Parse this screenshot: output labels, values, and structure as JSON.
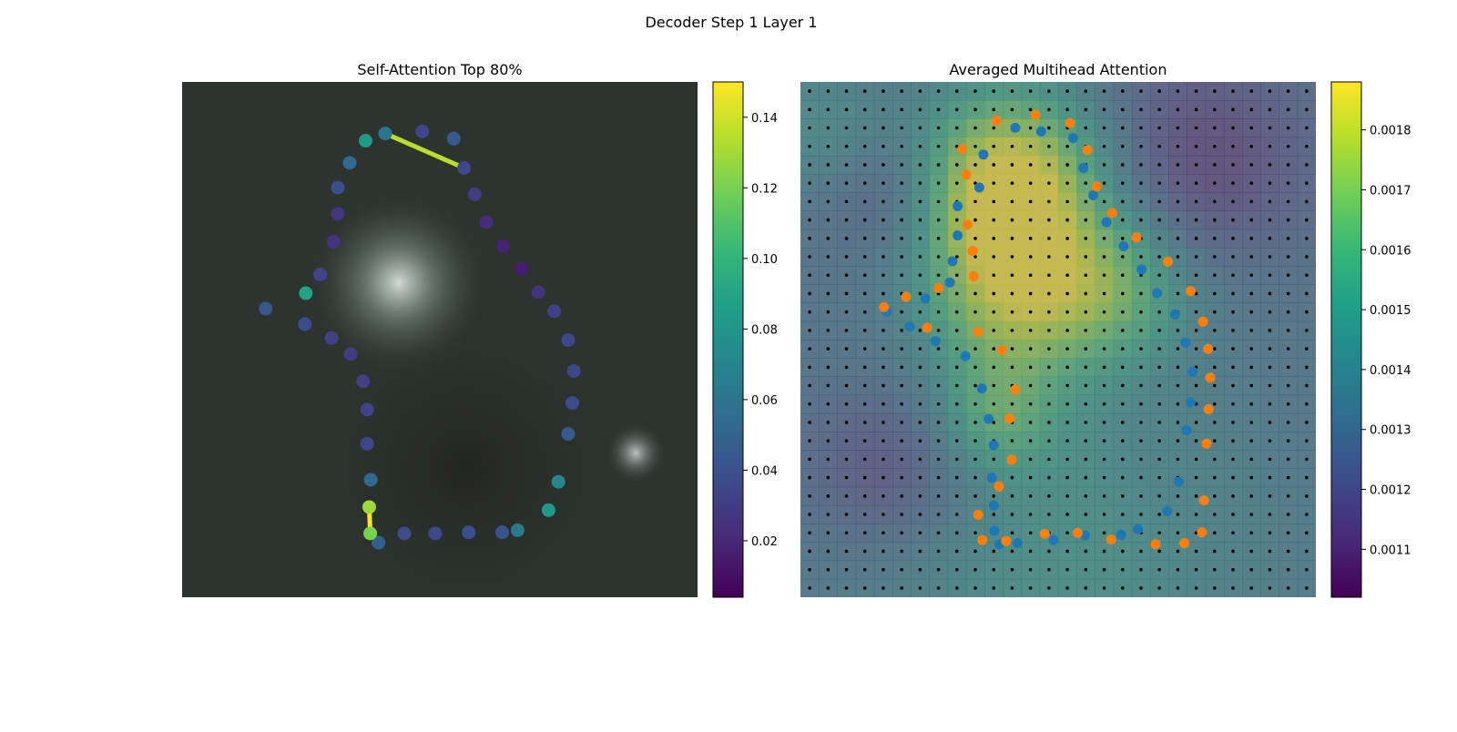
{
  "figure": {
    "title": "Decoder Step 1 Layer 1"
  },
  "colors": {
    "viridis": [
      "#440154",
      "#482878",
      "#3e4989",
      "#31688e",
      "#26828e",
      "#1f9e89",
      "#35b779",
      "#6ece58",
      "#b5de2b",
      "#fde725"
    ],
    "series_blue": "#1f77b4",
    "series_orange": "#ff7f0e",
    "grid_dot": "#000000"
  },
  "chart_data": [
    {
      "type": "scatter",
      "title": "Self-Attention Top 80%",
      "background": "grayscale photo of a chair (greenish tone)",
      "colorbar": {
        "min": 0.004,
        "max": 0.15,
        "ticks": [
          0.02,
          0.04,
          0.06,
          0.08,
          0.1,
          0.12,
          0.14
        ],
        "tick_labels": [
          "0.02",
          "0.04",
          "0.06",
          "0.08",
          "0.10",
          "0.12",
          "0.14"
        ]
      },
      "points": [
        {
          "x": 0.394,
          "y": 0.1,
          "v": 0.062
        },
        {
          "x": 0.466,
          "y": 0.096,
          "v": 0.036
        },
        {
          "x": 0.527,
          "y": 0.11,
          "v": 0.046
        },
        {
          "x": 0.547,
          "y": 0.167,
          "v": 0.036
        },
        {
          "x": 0.568,
          "y": 0.218,
          "v": 0.03
        },
        {
          "x": 0.59,
          "y": 0.272,
          "v": 0.022
        },
        {
          "x": 0.623,
          "y": 0.319,
          "v": 0.018
        },
        {
          "x": 0.659,
          "y": 0.362,
          "v": 0.016
        },
        {
          "x": 0.691,
          "y": 0.408,
          "v": 0.026
        },
        {
          "x": 0.722,
          "y": 0.445,
          "v": 0.032
        },
        {
          "x": 0.749,
          "y": 0.501,
          "v": 0.036
        },
        {
          "x": 0.76,
          "y": 0.561,
          "v": 0.036
        },
        {
          "x": 0.757,
          "y": 0.623,
          "v": 0.038
        },
        {
          "x": 0.749,
          "y": 0.683,
          "v": 0.046
        },
        {
          "x": 0.73,
          "y": 0.776,
          "v": 0.072
        },
        {
          "x": 0.711,
          "y": 0.831,
          "v": 0.082
        },
        {
          "x": 0.651,
          "y": 0.87,
          "v": 0.062
        },
        {
          "x": 0.621,
          "y": 0.874,
          "v": 0.042
        },
        {
          "x": 0.556,
          "y": 0.874,
          "v": 0.04
        },
        {
          "x": 0.491,
          "y": 0.876,
          "v": 0.036
        },
        {
          "x": 0.431,
          "y": 0.876,
          "v": 0.038
        },
        {
          "x": 0.381,
          "y": 0.894,
          "v": 0.048
        },
        {
          "x": 0.365,
          "y": 0.876,
          "v": 0.12
        },
        {
          "x": 0.363,
          "y": 0.825,
          "v": 0.128
        },
        {
          "x": 0.366,
          "y": 0.772,
          "v": 0.054
        },
        {
          "x": 0.359,
          "y": 0.702,
          "v": 0.036
        },
        {
          "x": 0.359,
          "y": 0.636,
          "v": 0.034
        },
        {
          "x": 0.351,
          "y": 0.581,
          "v": 0.032
        },
        {
          "x": 0.327,
          "y": 0.528,
          "v": 0.03
        },
        {
          "x": 0.29,
          "y": 0.497,
          "v": 0.032
        },
        {
          "x": 0.238,
          "y": 0.47,
          "v": 0.038
        },
        {
          "x": 0.162,
          "y": 0.44,
          "v": 0.044
        },
        {
          "x": 0.24,
          "y": 0.41,
          "v": 0.088
        },
        {
          "x": 0.268,
          "y": 0.374,
          "v": 0.034
        },
        {
          "x": 0.294,
          "y": 0.31,
          "v": 0.026
        },
        {
          "x": 0.302,
          "y": 0.256,
          "v": 0.026
        },
        {
          "x": 0.302,
          "y": 0.205,
          "v": 0.04
        },
        {
          "x": 0.325,
          "y": 0.157,
          "v": 0.054
        },
        {
          "x": 0.356,
          "y": 0.114,
          "v": 0.082
        }
      ],
      "edges": [
        {
          "from": 0,
          "to": 3,
          "v": 0.135
        },
        {
          "from": 22,
          "to": 23,
          "v": 0.15
        }
      ]
    },
    {
      "type": "scatter",
      "title": "Averaged Multihead Attention",
      "background": "attention heatmap (viridis) over grid of keypoints",
      "colorbar": {
        "min": 0.00102,
        "max": 0.00188,
        "ticks": [
          0.0011,
          0.0012,
          0.0013,
          0.0014,
          0.0015,
          0.0016,
          0.0017,
          0.0018
        ],
        "tick_labels": [
          "0.0011",
          "0.0012",
          "0.0013",
          "0.0014",
          "0.0015",
          "0.0016",
          "0.0017",
          "0.0018"
        ]
      },
      "grid": {
        "cols": 28,
        "rows": 28
      },
      "series": [
        {
          "color_key": "series_blue",
          "points": [
            {
              "x": 0.417,
              "y": 0.089
            },
            {
              "x": 0.467,
              "y": 0.096
            },
            {
              "x": 0.529,
              "y": 0.109
            },
            {
              "x": 0.549,
              "y": 0.167
            },
            {
              "x": 0.568,
              "y": 0.22
            },
            {
              "x": 0.594,
              "y": 0.272
            },
            {
              "x": 0.627,
              "y": 0.319
            },
            {
              "x": 0.662,
              "y": 0.364
            },
            {
              "x": 0.692,
              "y": 0.41
            },
            {
              "x": 0.727,
              "y": 0.451
            },
            {
              "x": 0.747,
              "y": 0.506
            },
            {
              "x": 0.761,
              "y": 0.562
            },
            {
              "x": 0.757,
              "y": 0.622
            },
            {
              "x": 0.749,
              "y": 0.676
            },
            {
              "x": 0.734,
              "y": 0.776
            },
            {
              "x": 0.712,
              "y": 0.833
            },
            {
              "x": 0.655,
              "y": 0.868
            },
            {
              "x": 0.622,
              "y": 0.879
            },
            {
              "x": 0.552,
              "y": 0.88
            },
            {
              "x": 0.491,
              "y": 0.889
            },
            {
              "x": 0.421,
              "y": 0.895
            },
            {
              "x": 0.386,
              "y": 0.897
            },
            {
              "x": 0.376,
              "y": 0.871
            },
            {
              "x": 0.375,
              "y": 0.822
            },
            {
              "x": 0.371,
              "y": 0.768
            },
            {
              "x": 0.375,
              "y": 0.705
            },
            {
              "x": 0.365,
              "y": 0.654
            },
            {
              "x": 0.352,
              "y": 0.595
            },
            {
              "x": 0.32,
              "y": 0.532
            },
            {
              "x": 0.262,
              "y": 0.503
            },
            {
              "x": 0.212,
              "y": 0.475
            },
            {
              "x": 0.167,
              "y": 0.446
            },
            {
              "x": 0.242,
              "y": 0.42
            },
            {
              "x": 0.29,
              "y": 0.389
            },
            {
              "x": 0.295,
              "y": 0.348
            },
            {
              "x": 0.305,
              "y": 0.298
            },
            {
              "x": 0.305,
              "y": 0.241
            },
            {
              "x": 0.355,
              "y": 0.141
            },
            {
              "x": 0.347,
              "y": 0.205
            }
          ]
        },
        {
          "color_key": "series_orange",
          "points": [
            {
              "x": 0.381,
              "y": 0.075
            },
            {
              "x": 0.456,
              "y": 0.064
            },
            {
              "x": 0.523,
              "y": 0.08
            },
            {
              "x": 0.557,
              "y": 0.132
            },
            {
              "x": 0.575,
              "y": 0.203
            },
            {
              "x": 0.605,
              "y": 0.254
            },
            {
              "x": 0.652,
              "y": 0.302
            },
            {
              "x": 0.713,
              "y": 0.349
            },
            {
              "x": 0.757,
              "y": 0.406
            },
            {
              "x": 0.781,
              "y": 0.465
            },
            {
              "x": 0.791,
              "y": 0.518
            },
            {
              "x": 0.795,
              "y": 0.574
            },
            {
              "x": 0.792,
              "y": 0.635
            },
            {
              "x": 0.788,
              "y": 0.702
            },
            {
              "x": 0.783,
              "y": 0.812
            },
            {
              "x": 0.779,
              "y": 0.874
            },
            {
              "x": 0.745,
              "y": 0.895
            },
            {
              "x": 0.689,
              "y": 0.897
            },
            {
              "x": 0.603,
              "y": 0.888
            },
            {
              "x": 0.538,
              "y": 0.875
            },
            {
              "x": 0.474,
              "y": 0.877
            },
            {
              "x": 0.399,
              "y": 0.891
            },
            {
              "x": 0.353,
              "y": 0.889
            },
            {
              "x": 0.345,
              "y": 0.84
            },
            {
              "x": 0.385,
              "y": 0.785
            },
            {
              "x": 0.41,
              "y": 0.733
            },
            {
              "x": 0.406,
              "y": 0.653
            },
            {
              "x": 0.417,
              "y": 0.597
            },
            {
              "x": 0.391,
              "y": 0.52
            },
            {
              "x": 0.345,
              "y": 0.485
            },
            {
              "x": 0.246,
              "y": 0.477
            },
            {
              "x": 0.162,
              "y": 0.437
            },
            {
              "x": 0.205,
              "y": 0.417
            },
            {
              "x": 0.268,
              "y": 0.4
            },
            {
              "x": 0.336,
              "y": 0.377
            },
            {
              "x": 0.334,
              "y": 0.328
            },
            {
              "x": 0.324,
              "y": 0.277
            },
            {
              "x": 0.322,
              "y": 0.18
            },
            {
              "x": 0.314,
              "y": 0.13
            }
          ]
        }
      ]
    }
  ]
}
